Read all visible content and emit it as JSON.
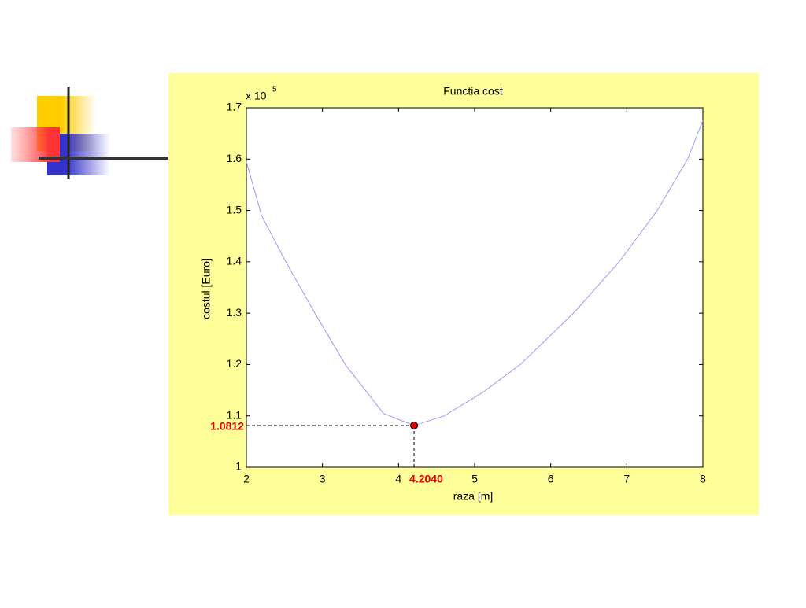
{
  "chart_data": {
    "type": "line",
    "title": "Functia cost",
    "x_label": "raza [m]",
    "y_label": "costul [Euro]",
    "y_multiplier": "x 10",
    "y_multiplier_exp": "5",
    "x": [
      2,
      2.2,
      2.5,
      2.9,
      3.3,
      3.8,
      4.204,
      4.6,
      5.1,
      5.6,
      6.3,
      6.9,
      7.4,
      7.8,
      8
    ],
    "values": [
      1.595,
      1.49,
      1.405,
      1.3,
      1.2,
      1.105,
      1.0812,
      1.1,
      1.145,
      1.2,
      1.3,
      1.4,
      1.5,
      1.6,
      1.675
    ],
    "color": "#9999ff",
    "xlim": [
      2,
      8
    ],
    "xticks": [
      2,
      3,
      4,
      5,
      6,
      7,
      8
    ],
    "ylim": [
      1,
      1.7
    ],
    "yticks": [
      1,
      1.1,
      1.2,
      1.3,
      1.4,
      1.5,
      1.6,
      1.7
    ],
    "grid": false,
    "marker": {
      "x": 4.204,
      "y": 1.0812,
      "x_label": "4.2040",
      "y_label": "1.0812",
      "color": "#e00000"
    }
  }
}
